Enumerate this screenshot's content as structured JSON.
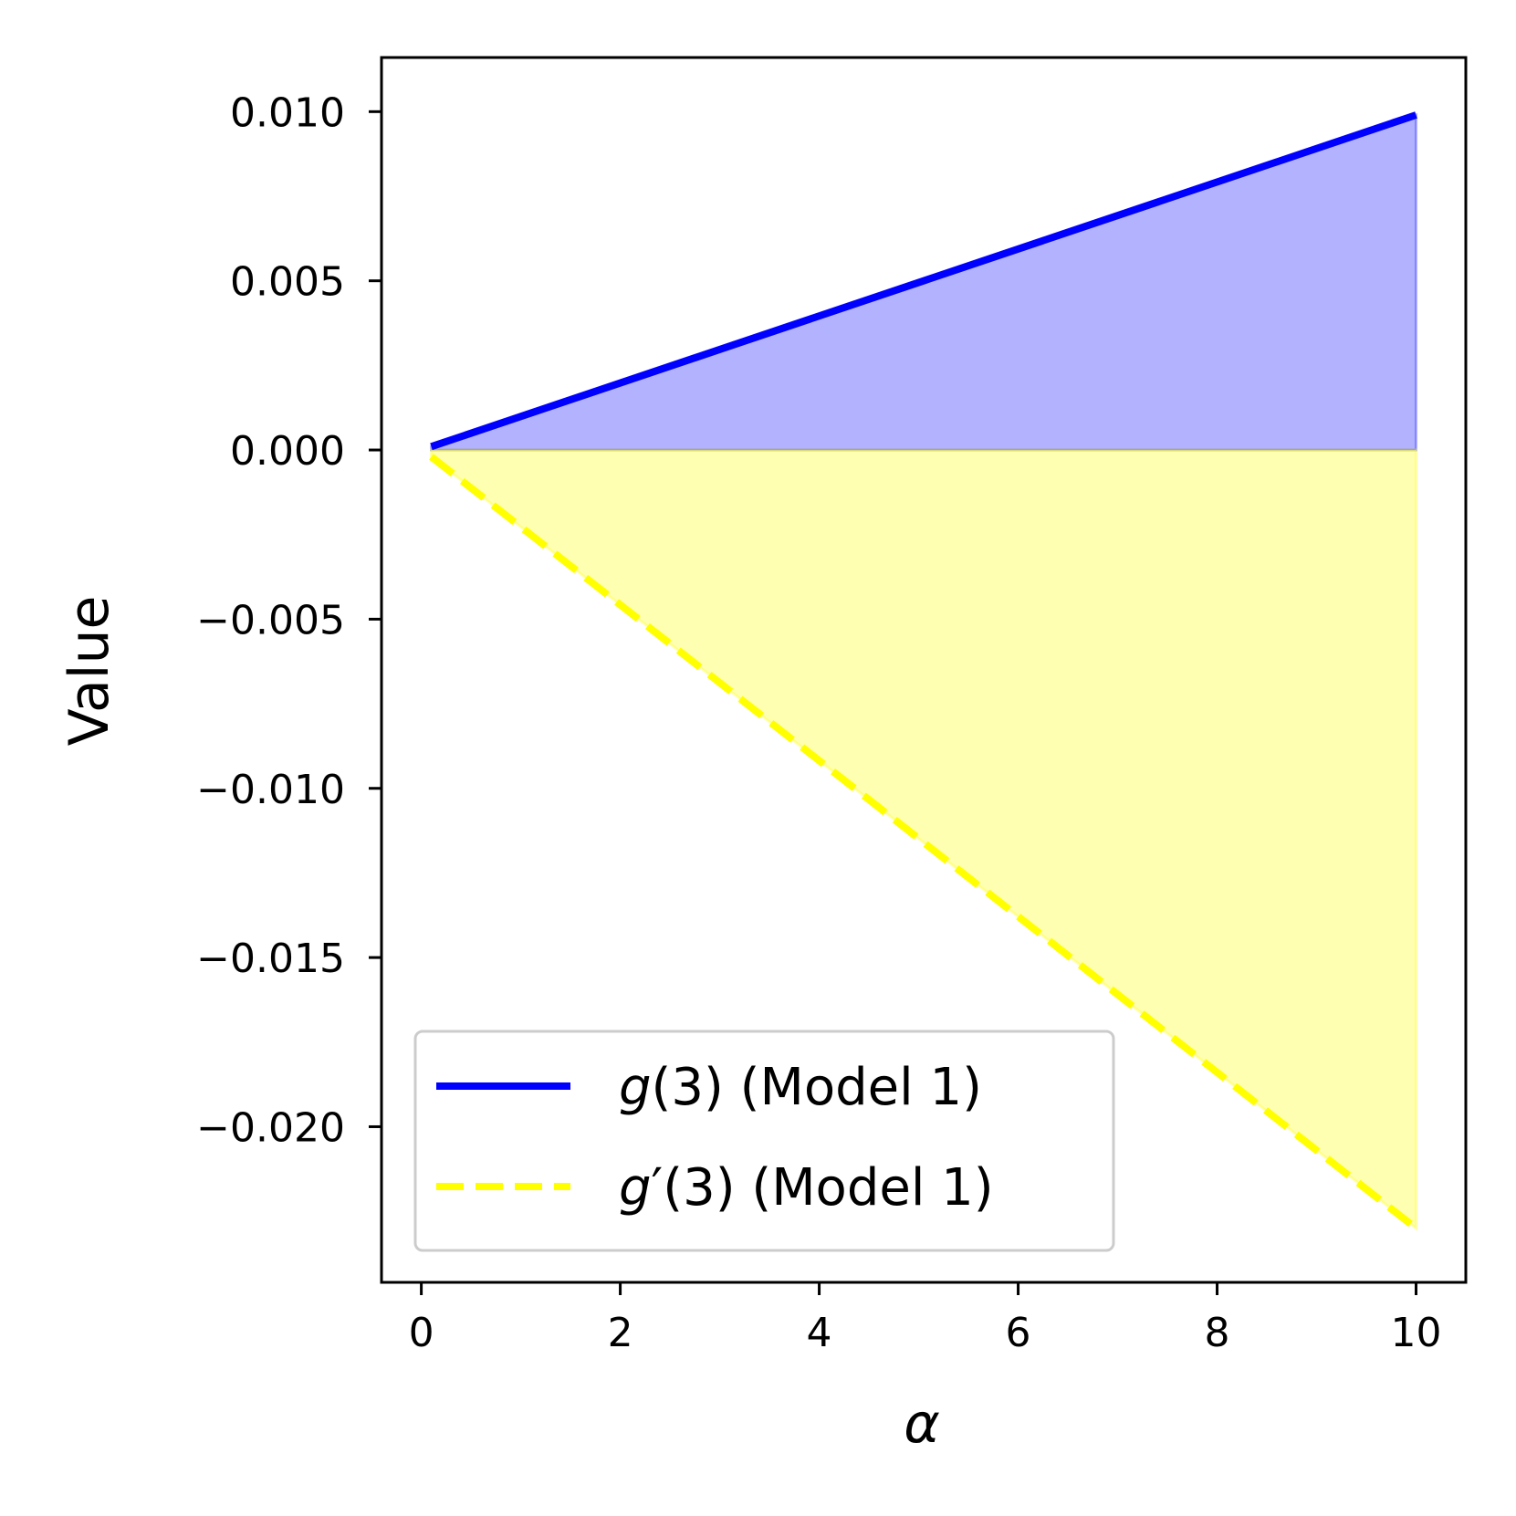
{
  "chart_data": {
    "type": "line",
    "xlabel": "α",
    "ylabel": "Value",
    "xlim": [
      -0.4,
      10.5
    ],
    "ylim": [
      -0.0246,
      0.0116
    ],
    "x_ticks": [
      0,
      2,
      4,
      6,
      8,
      10
    ],
    "x_tick_labels": [
      "0",
      "2",
      "4",
      "6",
      "8",
      "10"
    ],
    "y_ticks": [
      0.01,
      0.005,
      0.0,
      -0.005,
      -0.01,
      -0.015,
      -0.02
    ],
    "y_tick_labels": [
      "0.010",
      "0.005",
      "0.000",
      "−0.005",
      "−0.010",
      "−0.015",
      "−0.020"
    ],
    "grid": false,
    "legend_position": "lower-left",
    "x": [
      0.1,
      10
    ],
    "series": [
      {
        "name": "g(3) (Model 1)",
        "name_parts": {
          "func": "g",
          "rest": "(3) (Model 1)"
        },
        "values": [
          0.0001,
          0.0099
        ],
        "line_style": "solid",
        "color": "#0000ff",
        "fill_to_zero": true,
        "fill_color": "#0000ff",
        "fill_opacity": 0.3
      },
      {
        "name": "g′(3) (Model 1)",
        "name_parts": {
          "func": "g",
          "prime": "′",
          "rest": "(3) (Model 1)"
        },
        "values": [
          -0.0002,
          -0.023
        ],
        "line_style": "dashed",
        "color": "#ffff00",
        "fill_to_zero": true,
        "fill_color": "#ffff00",
        "fill_opacity": 0.3
      }
    ]
  }
}
